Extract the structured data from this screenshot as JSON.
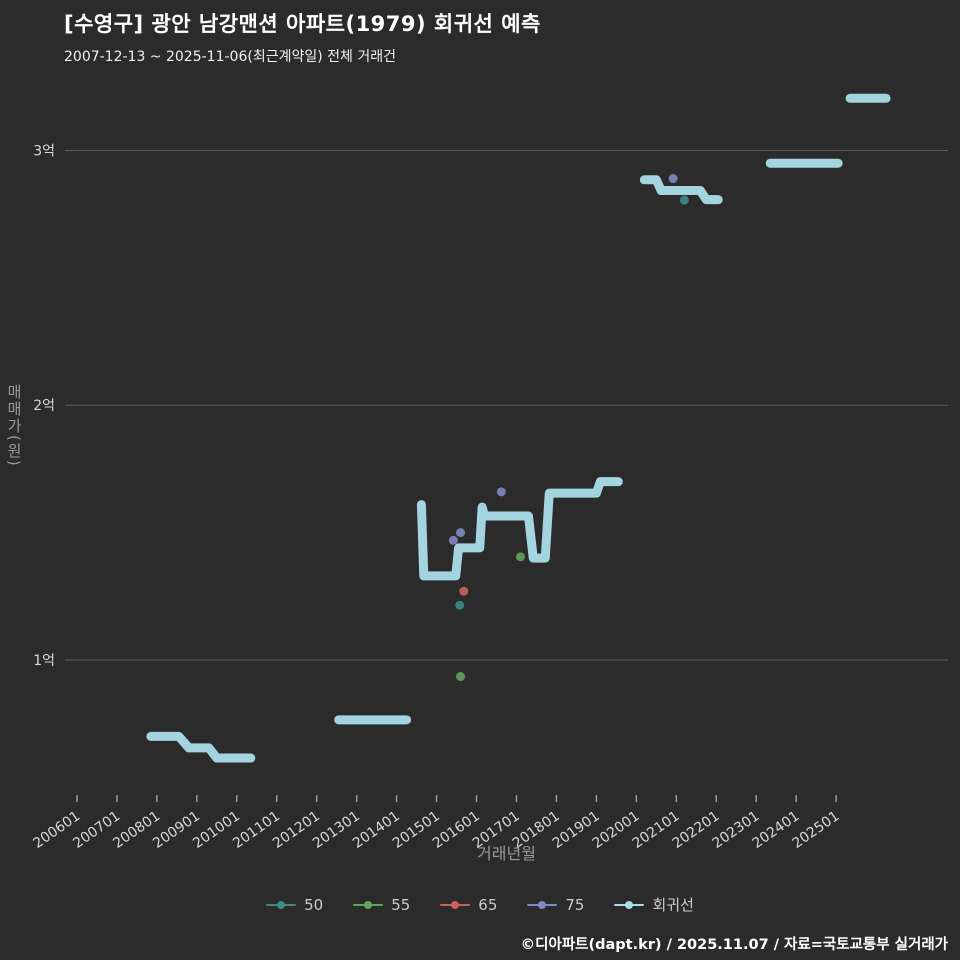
{
  "header": {
    "title": "[수영구] 광안 남강맨션 아파트(1979) 회귀선 예측",
    "subtitle": "2007-12-13 ~ 2025-11-06(최근계약일) 전체 거래건"
  },
  "footer": {
    "credit": "©디아파트(dapt.kr) / 2025.11.07 / 자료=국토교통부 실거래가"
  },
  "colors": {
    "background": "#2b2b2b",
    "grid": "#5d5d5d",
    "tick_label": "#d8d8d8",
    "axis_title": "#9a9a9a",
    "tick_mark": "#9a9a9a"
  },
  "chart_data": {
    "type": "line+scatter",
    "title": "[수영구] 광안 남강맨션 아파트(1979) 회귀선 예측",
    "xlabel": "거래년월",
    "ylabel": "매매가(원)",
    "x_range": [
      2005.7,
      2027.8
    ],
    "y_range": [
      0.47,
      3.316
    ],
    "x_ticks": [
      "200601",
      "200701",
      "200801",
      "200901",
      "201001",
      "201101",
      "201201",
      "201301",
      "201401",
      "201501",
      "201601",
      "201701",
      "201801",
      "201901",
      "202001",
      "202101",
      "202201",
      "202301",
      "202401",
      "202501"
    ],
    "x_tick_start_year": 2006,
    "y_ticks": [
      {
        "label": "1억",
        "value": 1
      },
      {
        "label": "2억",
        "value": 2
      },
      {
        "label": "3억",
        "value": 3
      }
    ],
    "legend": [
      {
        "name": "50",
        "color": "#3d8b84"
      },
      {
        "name": "55",
        "color": "#64a35e"
      },
      {
        "name": "65",
        "color": "#c9605c"
      },
      {
        "name": "75",
        "color": "#8089c0"
      },
      {
        "name": "회귀선",
        "color": "#aadce8"
      }
    ],
    "scatter": [
      {
        "name": "50",
        "color": "#3d8b84",
        "points": [
          [
            2015.58,
            1.215
          ],
          [
            2021.2,
            2.805
          ]
        ]
      },
      {
        "name": "55",
        "color": "#64a35e",
        "points": [
          [
            2015.6,
            0.935
          ],
          [
            2017.1,
            1.405
          ]
        ]
      },
      {
        "name": "65",
        "color": "#c9605c",
        "points": [
          [
            2015.68,
            1.27
          ]
        ]
      },
      {
        "name": "75",
        "color": "#8089c0",
        "points": [
          [
            2015.42,
            1.47
          ],
          [
            2015.6,
            1.5
          ],
          [
            2016.62,
            1.66
          ],
          [
            2020.92,
            2.89
          ]
        ]
      }
    ],
    "regression": {
      "name": "회귀선",
      "color": "#aadce8",
      "segments": [
        [
          [
            2007.85,
            0.7
          ],
          [
            2008.55,
            0.7
          ],
          [
            2008.8,
            0.655
          ],
          [
            2009.3,
            0.655
          ],
          [
            2009.5,
            0.615
          ],
          [
            2010.35,
            0.615
          ]
        ],
        [
          [
            2012.55,
            0.765
          ],
          [
            2014.25,
            0.765
          ]
        ],
        [
          [
            2014.62,
            1.61
          ],
          [
            2014.68,
            1.33
          ],
          [
            2015.48,
            1.33
          ],
          [
            2015.55,
            1.44
          ],
          [
            2016.08,
            1.44
          ],
          [
            2016.14,
            1.6
          ],
          [
            2016.2,
            1.565
          ],
          [
            2017.3,
            1.565
          ],
          [
            2017.42,
            1.4
          ],
          [
            2017.72,
            1.4
          ],
          [
            2017.82,
            1.655
          ],
          [
            2019.0,
            1.655
          ],
          [
            2019.1,
            1.7
          ],
          [
            2019.55,
            1.7
          ]
        ],
        [
          [
            2020.2,
            2.885
          ],
          [
            2020.5,
            2.885
          ],
          [
            2020.62,
            2.843
          ],
          [
            2021.6,
            2.843
          ],
          [
            2021.75,
            2.807
          ],
          [
            2022.05,
            2.807
          ]
        ],
        [
          [
            2023.35,
            2.95
          ],
          [
            2025.05,
            2.95
          ]
        ],
        [
          [
            2025.35,
            3.205
          ],
          [
            2026.25,
            3.205
          ]
        ]
      ]
    }
  }
}
